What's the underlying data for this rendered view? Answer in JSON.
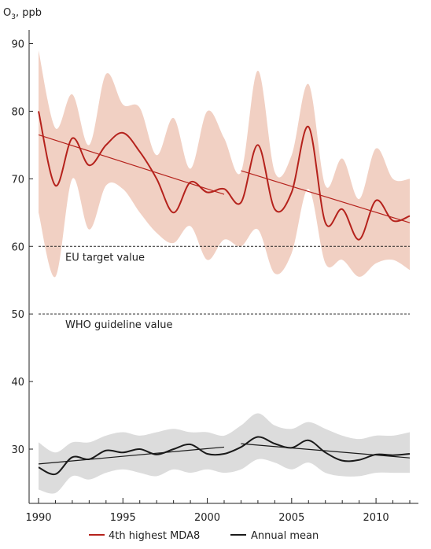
{
  "chart_data": {
    "type": "line",
    "title": "",
    "ylabel_main": "O",
    "ylabel_sub": "3",
    "ylabel_rest": ", ppb",
    "xlabel": "",
    "xlim": [
      1990,
      2012
    ],
    "ylim": [
      22,
      94
    ],
    "yticks": [
      30,
      40,
      50,
      60,
      70,
      80,
      90
    ],
    "xticks": [
      1990,
      1995,
      2000,
      2005,
      2010
    ],
    "grid": false,
    "legend_position": "bottom",
    "x": [
      1990,
      1991,
      1992,
      1993,
      1994,
      1995,
      1996,
      1997,
      1998,
      1999,
      2000,
      2001,
      2002,
      2003,
      2004,
      2005,
      2006,
      2007,
      2008,
      2009,
      2010,
      2011,
      2012
    ],
    "series": [
      {
        "name": "4th highest MDA8",
        "color": "#b5221c",
        "band_color": "#f1d0c3",
        "values": [
          80,
          69,
          76,
          72,
          75,
          76.8,
          74,
          70,
          65,
          69.5,
          68,
          68.5,
          66.5,
          75,
          65.5,
          68,
          77.7,
          63.5,
          65.5,
          61,
          66.8,
          63.8,
          64.5
        ],
        "upper": [
          89,
          77.5,
          82.5,
          75,
          85.5,
          81,
          80.5,
          73.5,
          79,
          71.5,
          80,
          76,
          71,
          86,
          71,
          73.5,
          84,
          69,
          73,
          67,
          74.5,
          70,
          70
        ],
        "lower": [
          65,
          55.5,
          70,
          62.5,
          69,
          68.5,
          65,
          62,
          60.5,
          63,
          58,
          61,
          60,
          62.5,
          56,
          59,
          68.5,
          57.5,
          58,
          55.5,
          57.5,
          58,
          56.5
        ],
        "trends": [
          {
            "x": [
              1990,
              2001
            ],
            "y": [
              76.5,
              67.7
            ]
          },
          {
            "x": [
              2002,
              2012
            ],
            "y": [
              71.2,
              63.5
            ]
          }
        ]
      },
      {
        "name": "Annual mean",
        "color": "#1a1a1a",
        "band_color": "#dcdcdc",
        "values": [
          27.3,
          26.3,
          28.8,
          28.5,
          29.8,
          29.5,
          30,
          29.2,
          30,
          30.7,
          29.3,
          29.3,
          30.3,
          31.8,
          30.8,
          30.2,
          31.3,
          29.5,
          28.3,
          28.4,
          29.2,
          29.1,
          29.3
        ],
        "upper": [
          31,
          29.5,
          31,
          31,
          32,
          32.5,
          32,
          32.5,
          33,
          32.5,
          32.5,
          32,
          33.5,
          35.3,
          33.5,
          33,
          34,
          33,
          32,
          31.5,
          32,
          32,
          32.5
        ],
        "lower": [
          24,
          23.5,
          26,
          25.5,
          26.5,
          27,
          26.5,
          26,
          27,
          26.5,
          27,
          26.5,
          27,
          28.5,
          28,
          27,
          28,
          26.5,
          26,
          26,
          26.5,
          26.5,
          26.5
        ],
        "trends": [
          {
            "x": [
              1990,
              2001
            ],
            "y": [
              27.8,
              30.3
            ]
          },
          {
            "x": [
              2002,
              2012
            ],
            "y": [
              30.8,
              28.7
            ]
          }
        ]
      }
    ],
    "reference_lines": [
      {
        "y": 60,
        "label": "EU target value"
      },
      {
        "y": 50,
        "label": "WHO guideline value"
      }
    ]
  }
}
